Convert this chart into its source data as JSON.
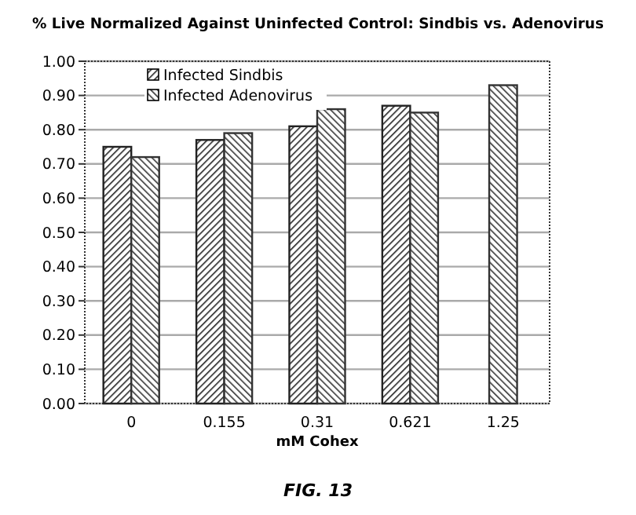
{
  "chart_data": {
    "type": "bar",
    "title": "% Live Normalized Against Uninfected Control: Sindbis vs. Adenovirus",
    "xlabel": "mM Cohex",
    "categories": [
      "0",
      "0.155",
      "0.31",
      "0.621",
      "1.25"
    ],
    "series": [
      {
        "name": "Infected Sindbis",
        "color": "#222222",
        "values": [
          0.75,
          0.77,
          0.81,
          0.87,
          null
        ]
      },
      {
        "name": "Infected Adenovirus",
        "color": "#333333",
        "values": [
          0.72,
          0.79,
          0.86,
          0.85,
          0.93
        ]
      }
    ],
    "ylim": [
      0,
      1
    ],
    "yticks": [
      {
        "value": 0,
        "label": "0.00"
      },
      {
        "value": 0.1,
        "label": "0.10"
      },
      {
        "value": 0.2,
        "label": "0.20"
      },
      {
        "value": 0.3,
        "label": "0.30"
      },
      {
        "value": 0.4,
        "label": "0.40"
      },
      {
        "value": 0.5,
        "label": "0.50"
      },
      {
        "value": 0.6,
        "label": "0.60"
      },
      {
        "value": 0.7,
        "label": "0.70"
      },
      {
        "value": 0.8,
        "label": "0.80"
      },
      {
        "value": 0.9,
        "label": "0.90"
      },
      {
        "value": 1,
        "label": "1.00"
      }
    ],
    "grid": "y",
    "legend": "top left",
    "annotations": [
      "FIG. 13"
    ]
  }
}
